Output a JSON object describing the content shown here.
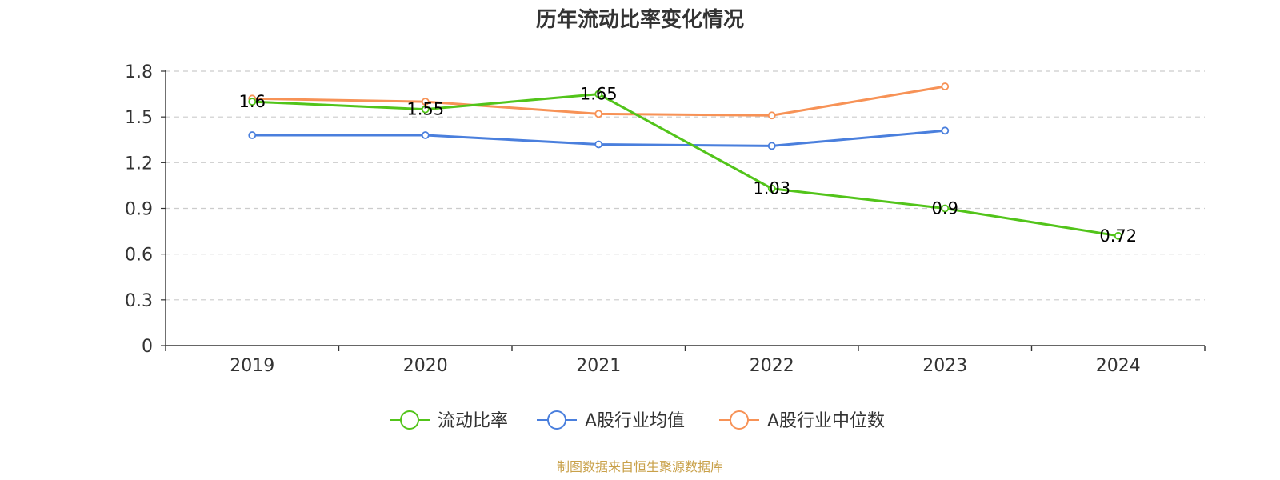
{
  "chart_data": {
    "type": "line",
    "title": "历年流动比率变化情况",
    "categories": [
      "2019",
      "2020",
      "2021",
      "2022",
      "2023",
      "2024"
    ],
    "ylim": [
      0,
      1.8
    ],
    "yticks": [
      "0",
      "0.3",
      "0.6",
      "0.9",
      "1.2",
      "1.5",
      "1.8"
    ],
    "grid": true,
    "legend_position": "bottom-center",
    "series": [
      {
        "name": "流动比率",
        "color": "#52c41a",
        "values": [
          1.6,
          1.55,
          1.65,
          1.03,
          0.9,
          0.72
        ],
        "labels": [
          "1.6",
          "1.55",
          "1.65",
          "1.03",
          "0.9",
          "0.72"
        ],
        "show_labels": true
      },
      {
        "name": "A股行业均值",
        "color": "#4a7fdd",
        "values": [
          1.38,
          1.38,
          1.32,
          1.31,
          1.41,
          null
        ],
        "show_labels": false
      },
      {
        "name": "A股行业中位数",
        "color": "#f79256",
        "values": [
          1.62,
          1.6,
          1.52,
          1.51,
          1.7,
          null
        ],
        "show_labels": false
      }
    ],
    "source": "制图数据来自恒生聚源数据库",
    "source_color": "#c9a14a"
  }
}
